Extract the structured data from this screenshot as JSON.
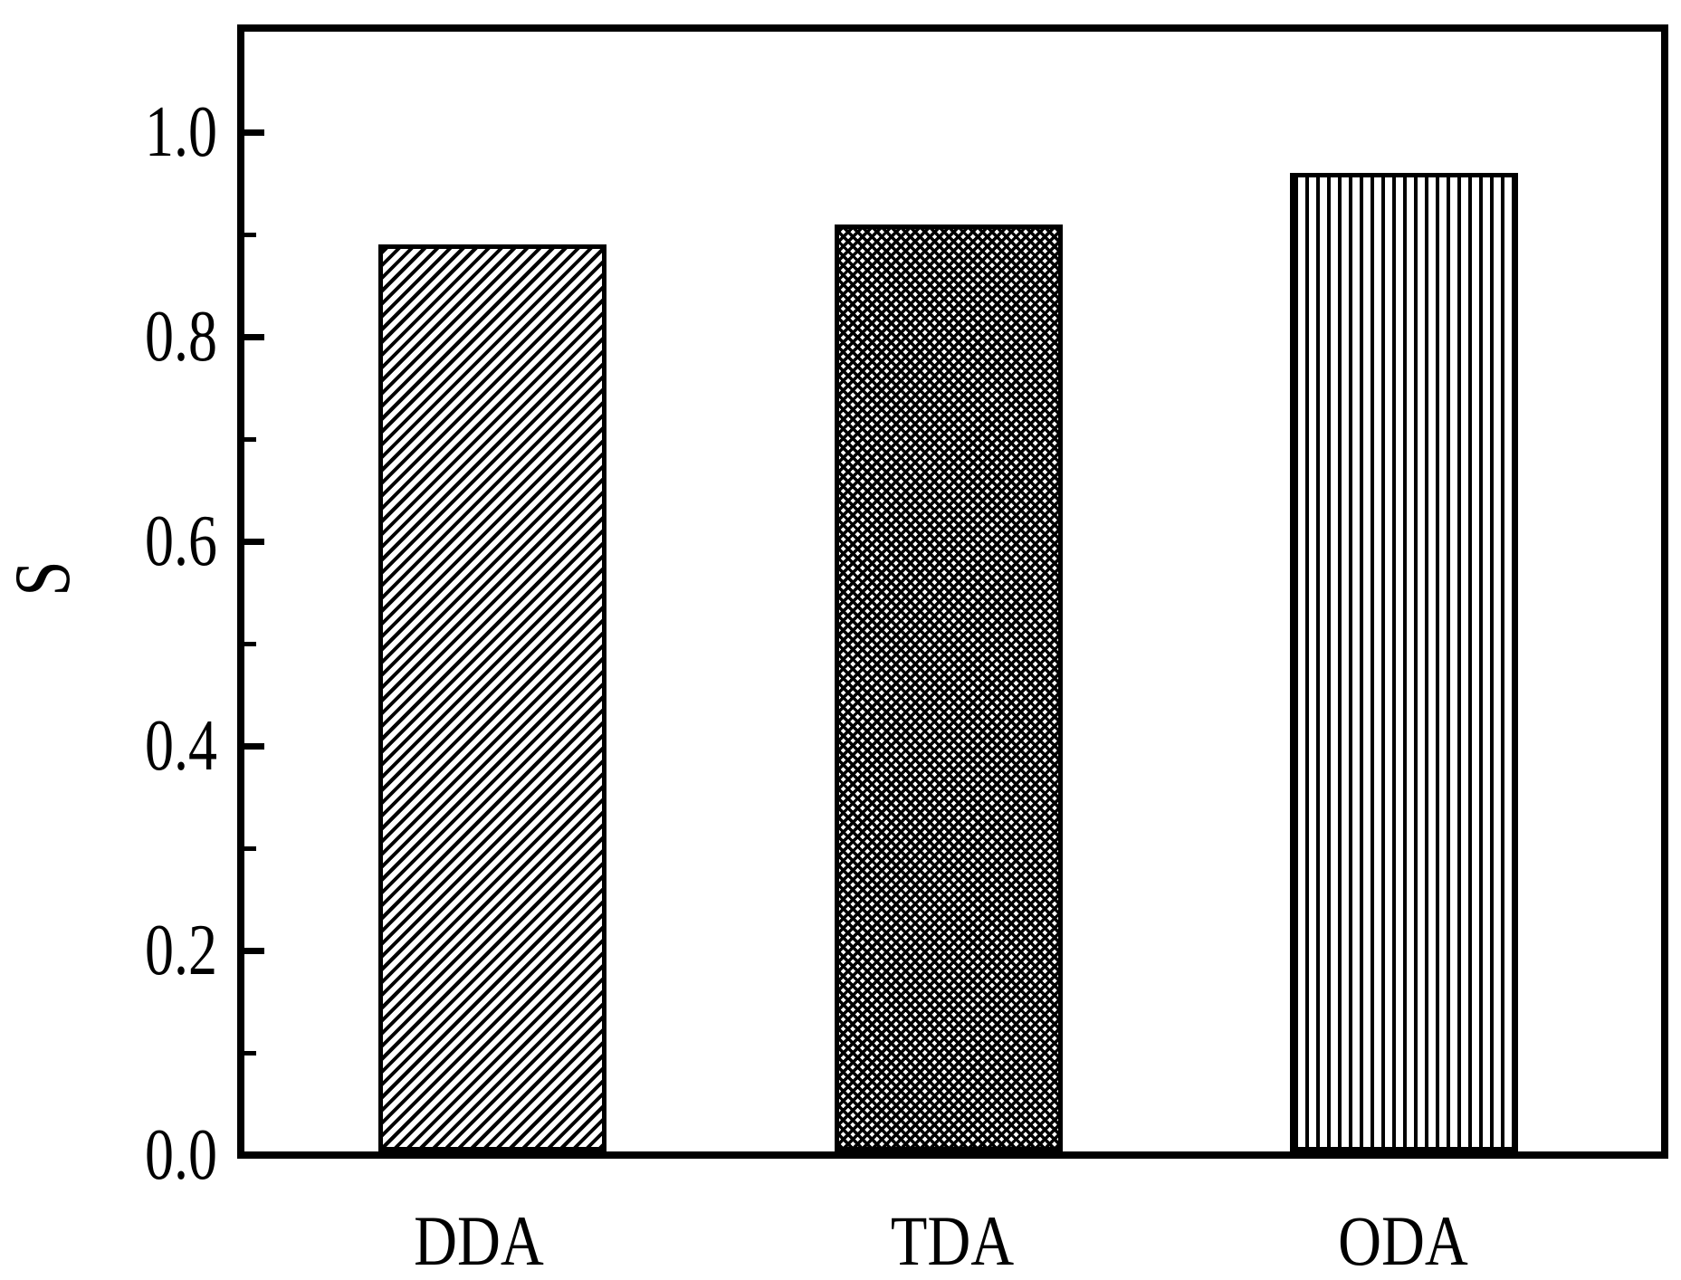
{
  "chart_data": {
    "type": "bar",
    "title": "",
    "categories": [
      "DDA",
      "TDA",
      "ODA"
    ],
    "values": [
      0.89,
      0.91,
      0.96
    ],
    "series": [
      {
        "name": "S",
        "values": [
          0.89,
          0.91,
          0.96
        ]
      }
    ],
    "xlabel": "",
    "ylabel": "S",
    "ylim": [
      0.0,
      1.1
    ],
    "ytick_major_values": [
      0.0,
      0.2,
      0.4,
      0.6,
      0.8,
      1.0
    ],
    "ytick_labels": [
      "0.0",
      "0.2",
      "0.4",
      "0.6",
      "0.8",
      "1.0"
    ],
    "ytick_minor_values": [
      0.1,
      0.3,
      0.5,
      0.7,
      0.9
    ],
    "bar_patterns": [
      "diagonal-forward-hatch",
      "diagonal-crosshatch",
      "vertical-line-hatch"
    ],
    "bar_fill_color": "#ffffff",
    "bar_edge_color": "#000000",
    "axis_color": "#000000",
    "background_color": "#ffffff",
    "grid": false,
    "legend": null,
    "tick_direction": "in"
  }
}
